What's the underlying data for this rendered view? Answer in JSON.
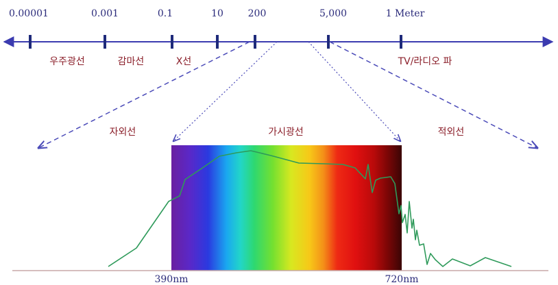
{
  "scale": {
    "ticks": [
      "0.00001",
      "0.001",
      "0.1",
      "10",
      "200",
      "5,000",
      "1 Meter"
    ]
  },
  "bands": {
    "cosmic": "우주광선",
    "gamma": "감마선",
    "xray": "X선",
    "tv_radio": "TV/라디오 파"
  },
  "regions": {
    "uv": "자외선",
    "visible": "가시광선",
    "ir": "적외선"
  },
  "spectrum": {
    "start_label": "390nm",
    "end_label": "720nm"
  },
  "colors": {
    "axis": "#3b3bb0",
    "tick": "#1e2a7a",
    "band_text": "#8b1f2a",
    "curve": "#2e9a5a",
    "baseline": "#c9a9a9"
  }
}
